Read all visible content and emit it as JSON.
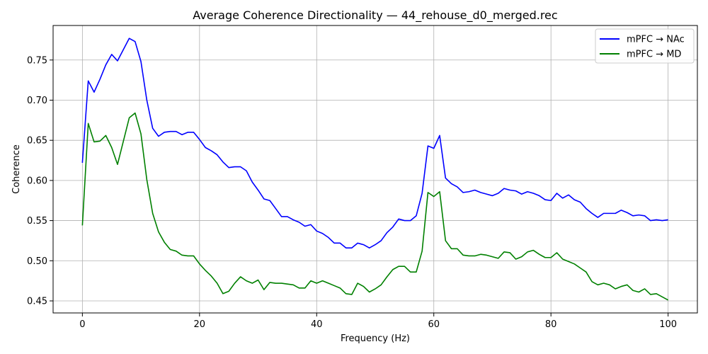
{
  "chart_data": {
    "type": "line",
    "title": "Average Coherence Directionality — 44_rehouse_d0_merged.rec",
    "xlabel": "Frequency (Hz)",
    "ylabel": "Coherence",
    "xlim": [
      -5,
      105
    ],
    "ylim": [
      0.435,
      0.793
    ],
    "xticks": [
      0,
      20,
      40,
      60,
      80,
      100
    ],
    "yticks": [
      0.45,
      0.5,
      0.55,
      0.6,
      0.65,
      0.7,
      0.75
    ],
    "ytick_labels": [
      "0.45",
      "0.50",
      "0.55",
      "0.60",
      "0.65",
      "0.70",
      "0.75"
    ],
    "grid": true,
    "legend_position": "top-right",
    "x": [
      0,
      1,
      2,
      3,
      4,
      5,
      6,
      7,
      8,
      9,
      10,
      11,
      12,
      13,
      14,
      15,
      16,
      17,
      18,
      19,
      20,
      21,
      22,
      23,
      24,
      25,
      26,
      27,
      28,
      29,
      30,
      31,
      32,
      33,
      34,
      35,
      36,
      37,
      38,
      39,
      40,
      41,
      42,
      43,
      44,
      45,
      46,
      47,
      48,
      49,
      50,
      51,
      52,
      53,
      54,
      55,
      56,
      57,
      58,
      59,
      60,
      61,
      62,
      63,
      64,
      65,
      66,
      67,
      68,
      69,
      70,
      71,
      72,
      73,
      74,
      75,
      76,
      77,
      78,
      79,
      80,
      81,
      82,
      83,
      84,
      85,
      86,
      87,
      88,
      89,
      90,
      91,
      92,
      93,
      94,
      95,
      96,
      97,
      98,
      99,
      100
    ],
    "series": [
      {
        "name": "mPFC → NAc",
        "color": "#0000ff",
        "values": [
          0.622,
          0.724,
          0.71,
          0.726,
          0.744,
          0.757,
          0.749,
          0.763,
          0.777,
          0.773,
          0.748,
          0.7,
          0.665,
          0.655,
          0.66,
          0.661,
          0.661,
          0.657,
          0.66,
          0.66,
          0.651,
          0.641,
          0.637,
          0.632,
          0.623,
          0.616,
          0.617,
          0.617,
          0.612,
          0.598,
          0.588,
          0.577,
          0.575,
          0.565,
          0.555,
          0.555,
          0.551,
          0.548,
          0.543,
          0.545,
          0.537,
          0.534,
          0.529,
          0.522,
          0.522,
          0.516,
          0.516,
          0.522,
          0.52,
          0.516,
          0.52,
          0.525,
          0.535,
          0.542,
          0.552,
          0.55,
          0.55,
          0.556,
          0.584,
          0.643,
          0.64,
          0.656,
          0.603,
          0.596,
          0.592,
          0.585,
          0.586,
          0.588,
          0.585,
          0.583,
          0.581,
          0.584,
          0.59,
          0.588,
          0.587,
          0.583,
          0.586,
          0.584,
          0.581,
          0.576,
          0.575,
          0.584,
          0.578,
          0.582,
          0.576,
          0.573,
          0.565,
          0.559,
          0.554,
          0.559,
          0.559,
          0.559,
          0.563,
          0.56,
          0.556,
          0.557,
          0.556,
          0.55,
          0.551,
          0.55,
          0.551
        ]
      },
      {
        "name": "mPFC → MD",
        "color": "#008000",
        "values": [
          0.544,
          0.671,
          0.648,
          0.649,
          0.656,
          0.641,
          0.62,
          0.649,
          0.678,
          0.684,
          0.658,
          0.601,
          0.559,
          0.536,
          0.523,
          0.514,
          0.512,
          0.507,
          0.506,
          0.506,
          0.496,
          0.488,
          0.481,
          0.472,
          0.459,
          0.462,
          0.472,
          0.48,
          0.475,
          0.472,
          0.476,
          0.464,
          0.473,
          0.472,
          0.472,
          0.471,
          0.47,
          0.466,
          0.466,
          0.475,
          0.472,
          0.475,
          0.472,
          0.469,
          0.466,
          0.459,
          0.458,
          0.472,
          0.468,
          0.461,
          0.465,
          0.47,
          0.48,
          0.489,
          0.493,
          0.493,
          0.486,
          0.486,
          0.512,
          0.585,
          0.58,
          0.586,
          0.525,
          0.515,
          0.515,
          0.507,
          0.506,
          0.506,
          0.508,
          0.507,
          0.505,
          0.503,
          0.511,
          0.51,
          0.502,
          0.505,
          0.511,
          0.513,
          0.508,
          0.504,
          0.504,
          0.51,
          0.502,
          0.499,
          0.496,
          0.491,
          0.486,
          0.474,
          0.47,
          0.472,
          0.47,
          0.465,
          0.468,
          0.47,
          0.463,
          0.461,
          0.465,
          0.458,
          0.459,
          0.455,
          0.451
        ]
      }
    ]
  }
}
